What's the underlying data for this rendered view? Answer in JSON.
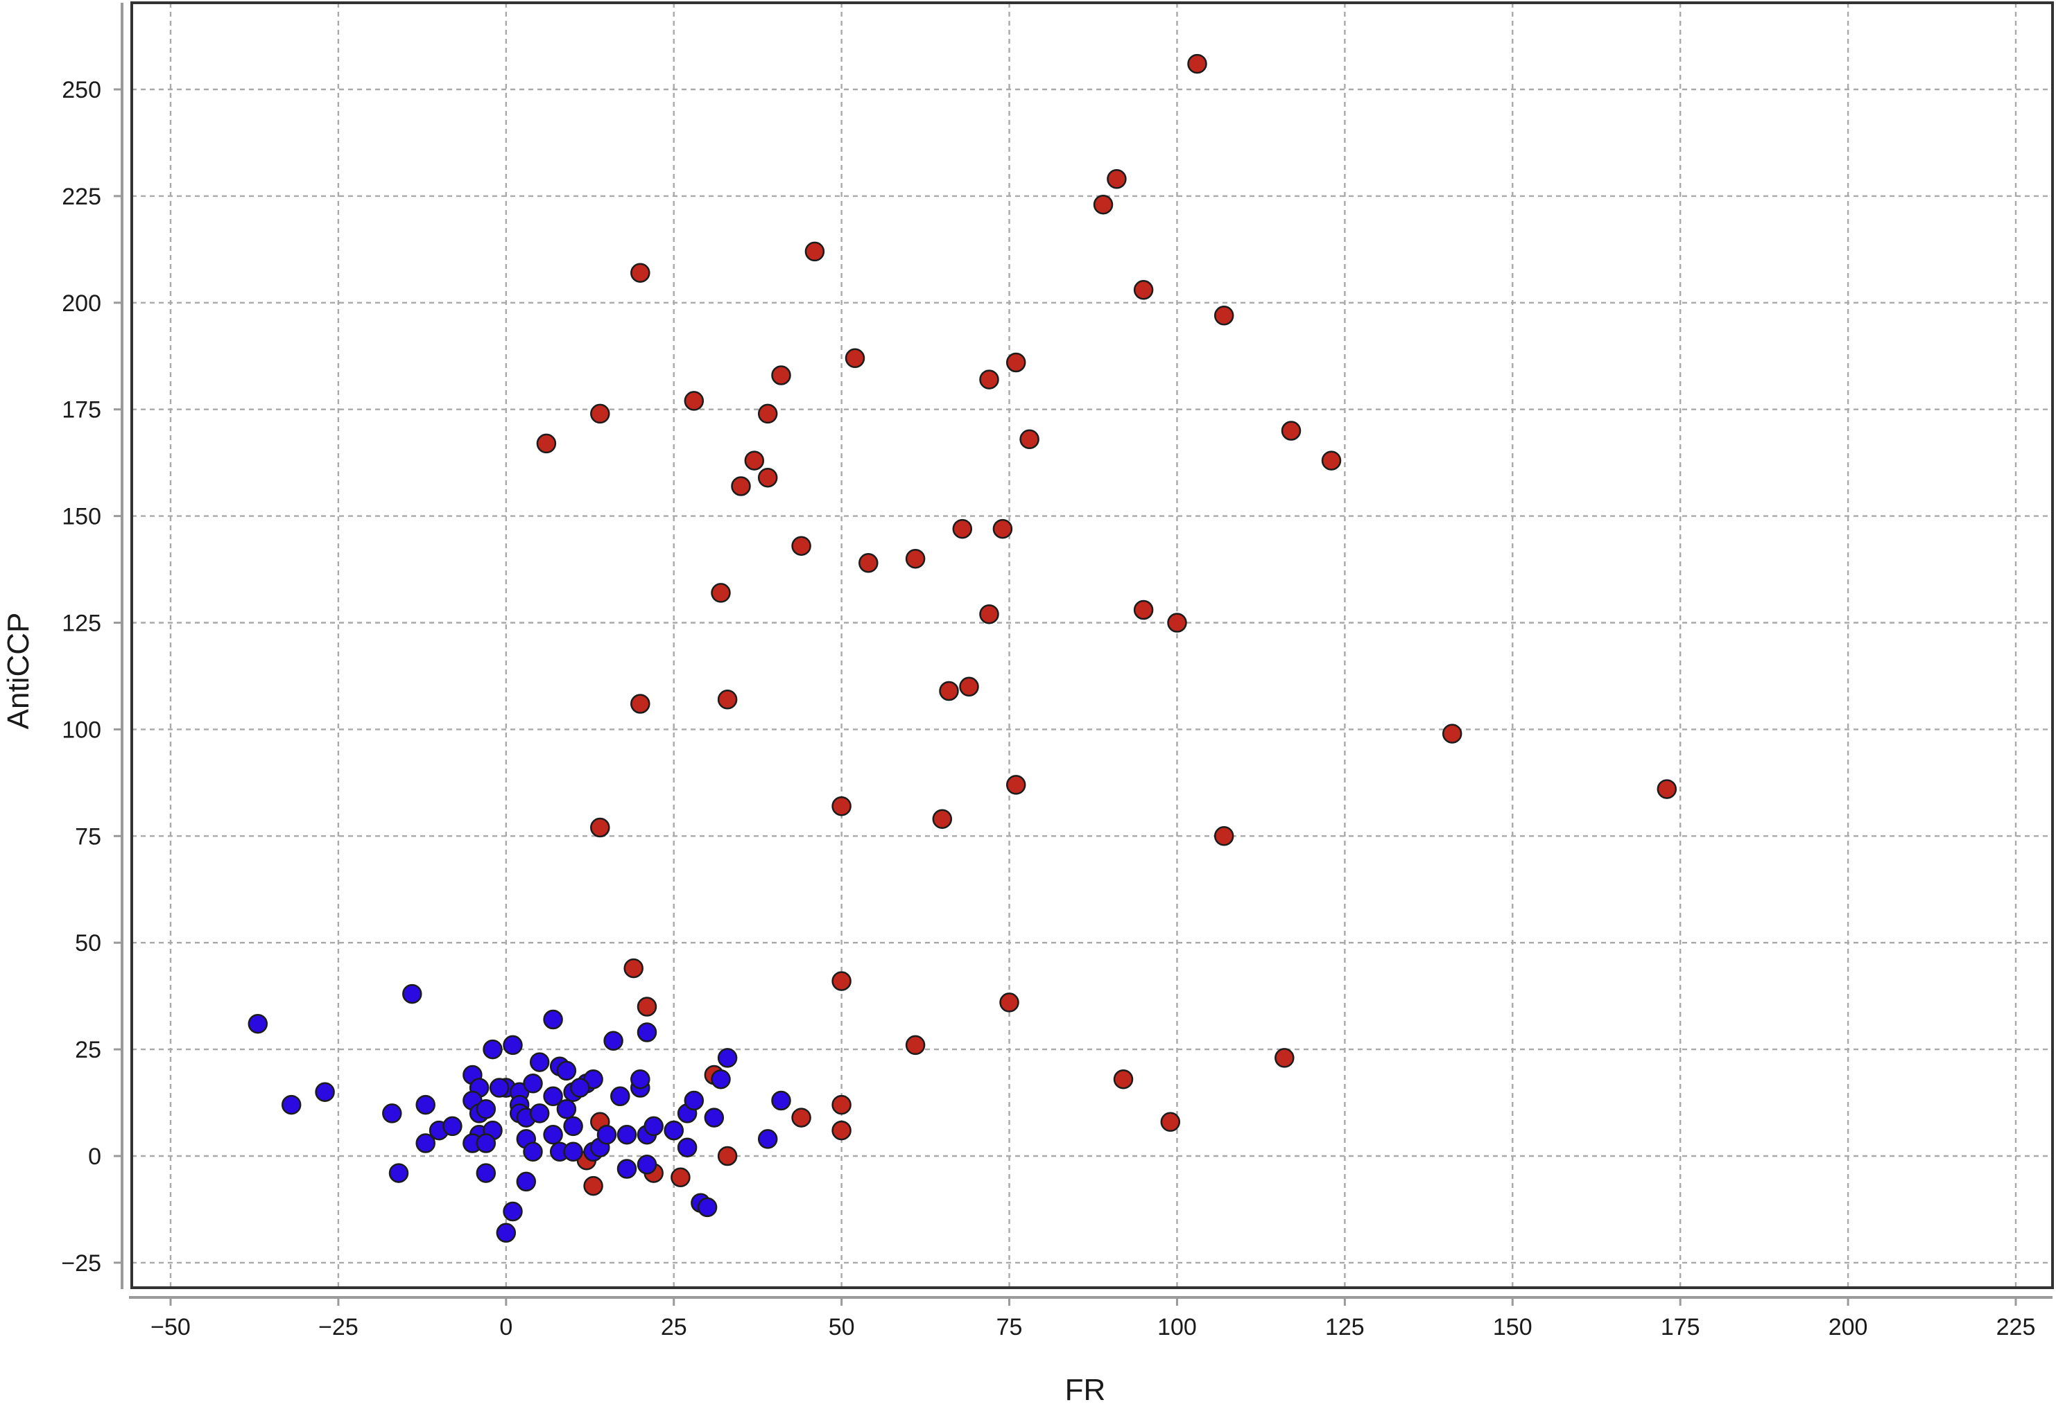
{
  "chart_data": {
    "type": "scatter",
    "title": "",
    "xlabel": "FR",
    "ylabel": "AntiCCP",
    "xlim": [
      -55,
      230
    ],
    "ylim": [
      -32,
      270
    ],
    "xticks": [
      -50,
      -25,
      0,
      25,
      50,
      75,
      100,
      125,
      150,
      175,
      200,
      225
    ],
    "yticks": [
      -25,
      0,
      25,
      50,
      75,
      100,
      125,
      150,
      175,
      200,
      225,
      250
    ],
    "xtick_labels": [
      "−50",
      "−25",
      "0",
      "25",
      "50",
      "75",
      "100",
      "125",
      "150",
      "175",
      "200",
      "225"
    ],
    "ytick_labels": [
      "−25",
      "0",
      "25",
      "50",
      "75",
      "100",
      "125",
      "150",
      "175",
      "200",
      "225",
      "250"
    ],
    "grid": true,
    "colors": {
      "group_red": "#c0281e",
      "group_blue": "#2a0ae0"
    },
    "series": [
      {
        "color": "#c0281e",
        "points": [
          [
            103,
            256
          ],
          [
            91,
            229
          ],
          [
            89,
            223
          ],
          [
            46,
            212
          ],
          [
            20,
            207
          ],
          [
            95,
            203
          ],
          [
            107,
            197
          ],
          [
            52,
            187
          ],
          [
            76,
            186
          ],
          [
            41,
            183
          ],
          [
            72,
            182
          ],
          [
            28,
            177
          ],
          [
            14,
            174
          ],
          [
            39,
            174
          ],
          [
            117,
            170
          ],
          [
            6,
            167
          ],
          [
            78,
            168
          ],
          [
            123,
            163
          ],
          [
            37,
            163
          ],
          [
            39,
            159
          ],
          [
            35,
            157
          ],
          [
            68,
            147
          ],
          [
            74,
            147
          ],
          [
            44,
            143
          ],
          [
            54,
            139
          ],
          [
            61,
            140
          ],
          [
            32,
            132
          ],
          [
            72,
            127
          ],
          [
            95,
            128
          ],
          [
            100,
            125
          ],
          [
            66,
            109
          ],
          [
            69,
            110
          ],
          [
            33,
            107
          ],
          [
            20,
            106
          ],
          [
            141,
            99
          ],
          [
            76,
            87
          ],
          [
            173,
            86
          ],
          [
            50,
            82
          ],
          [
            65,
            79
          ],
          [
            14,
            77
          ],
          [
            107,
            75
          ],
          [
            19,
            44
          ],
          [
            50,
            41
          ],
          [
            75,
            36
          ],
          [
            21,
            35
          ],
          [
            61,
            26
          ],
          [
            116,
            23
          ],
          [
            31,
            19
          ],
          [
            92,
            18
          ],
          [
            50,
            12
          ],
          [
            44,
            9
          ],
          [
            99,
            8
          ],
          [
            14,
            8
          ],
          [
            25,
            6
          ],
          [
            50,
            6
          ],
          [
            33,
            0
          ],
          [
            12,
            -1
          ],
          [
            22,
            -4
          ],
          [
            26,
            -5
          ],
          [
            13,
            -7
          ]
        ]
      },
      {
        "color": "#2a0ae0",
        "points": [
          [
            -37,
            31
          ],
          [
            -14,
            38
          ],
          [
            -27,
            15
          ],
          [
            -32,
            12
          ],
          [
            -12,
            12
          ],
          [
            -17,
            10
          ],
          [
            -12,
            3
          ],
          [
            -16,
            -4
          ],
          [
            -10,
            6
          ],
          [
            -8,
            7
          ],
          [
            -5,
            19
          ],
          [
            -4,
            16
          ],
          [
            -5,
            13
          ],
          [
            -4,
            10
          ],
          [
            -3,
            11
          ],
          [
            -2,
            25
          ],
          [
            -4,
            5
          ],
          [
            -2,
            6
          ],
          [
            -5,
            3
          ],
          [
            -3,
            3
          ],
          [
            -3,
            -4
          ],
          [
            0,
            16
          ],
          [
            2,
            15
          ],
          [
            1,
            26
          ],
          [
            -1,
            16
          ],
          [
            2,
            12
          ],
          [
            2,
            10
          ],
          [
            3,
            9
          ],
          [
            3,
            4
          ],
          [
            4,
            1
          ],
          [
            3,
            -6
          ],
          [
            1,
            -13
          ],
          [
            0,
            -18
          ],
          [
            7,
            32
          ],
          [
            5,
            22
          ],
          [
            4,
            17
          ],
          [
            5,
            10
          ],
          [
            7,
            14
          ],
          [
            8,
            21
          ],
          [
            9,
            20
          ],
          [
            7,
            5
          ],
          [
            9,
            11
          ],
          [
            10,
            15
          ],
          [
            8,
            1
          ],
          [
            10,
            7
          ],
          [
            10,
            1
          ],
          [
            12,
            17
          ],
          [
            13,
            18
          ],
          [
            11,
            16
          ],
          [
            13,
            1
          ],
          [
            14,
            2
          ],
          [
            15,
            5
          ],
          [
            16,
            27
          ],
          [
            17,
            14
          ],
          [
            18,
            5
          ],
          [
            18,
            -3
          ],
          [
            20,
            16
          ],
          [
            20,
            18
          ],
          [
            21,
            29
          ],
          [
            21,
            5
          ],
          [
            21,
            -2
          ],
          [
            22,
            7
          ],
          [
            25,
            6
          ],
          [
            27,
            10
          ],
          [
            28,
            13
          ],
          [
            27,
            2
          ],
          [
            29,
            -11
          ],
          [
            30,
            -12
          ],
          [
            31,
            9
          ],
          [
            32,
            18
          ],
          [
            33,
            23
          ],
          [
            39,
            4
          ],
          [
            41,
            13
          ]
        ]
      }
    ]
  }
}
